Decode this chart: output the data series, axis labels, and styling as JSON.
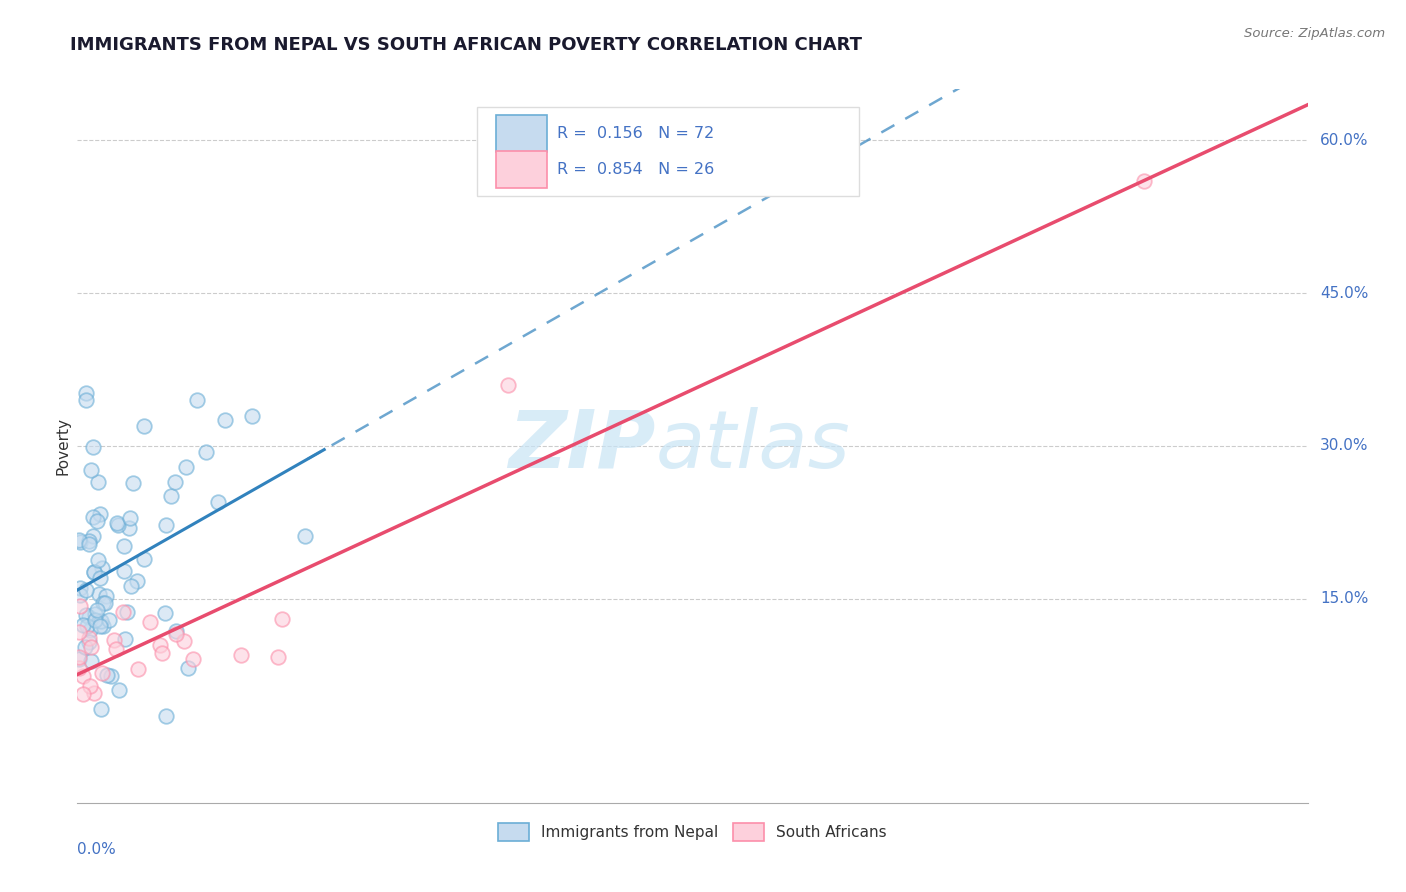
{
  "title": "IMMIGRANTS FROM NEPAL VS SOUTH AFRICAN POVERTY CORRELATION CHART",
  "source": "Source: ZipAtlas.com",
  "ylabel": "Poverty",
  "xlim": [
    0.0,
    0.6
  ],
  "ylim": [
    -0.05,
    0.65
  ],
  "nepal_color": "#6baed6",
  "nepal_color_fill": "#c6dbef",
  "sa_color": "#fc8faa",
  "sa_color_fill": "#fdd0dc",
  "nepal_trend_color": "#3182bd",
  "sa_trend_color": "#e84c6e",
  "grid_color": "#cccccc",
  "axis_label_color": "#4472c4",
  "text_color": "#333333",
  "watermark_color": "#c8e4f5",
  "legend_text_color": "#4472c4",
  "y_tick_vals": [
    0.15,
    0.3,
    0.45,
    0.6
  ],
  "y_tick_labels": [
    "15.0%",
    "30.0%",
    "45.0%",
    "60.0%"
  ]
}
